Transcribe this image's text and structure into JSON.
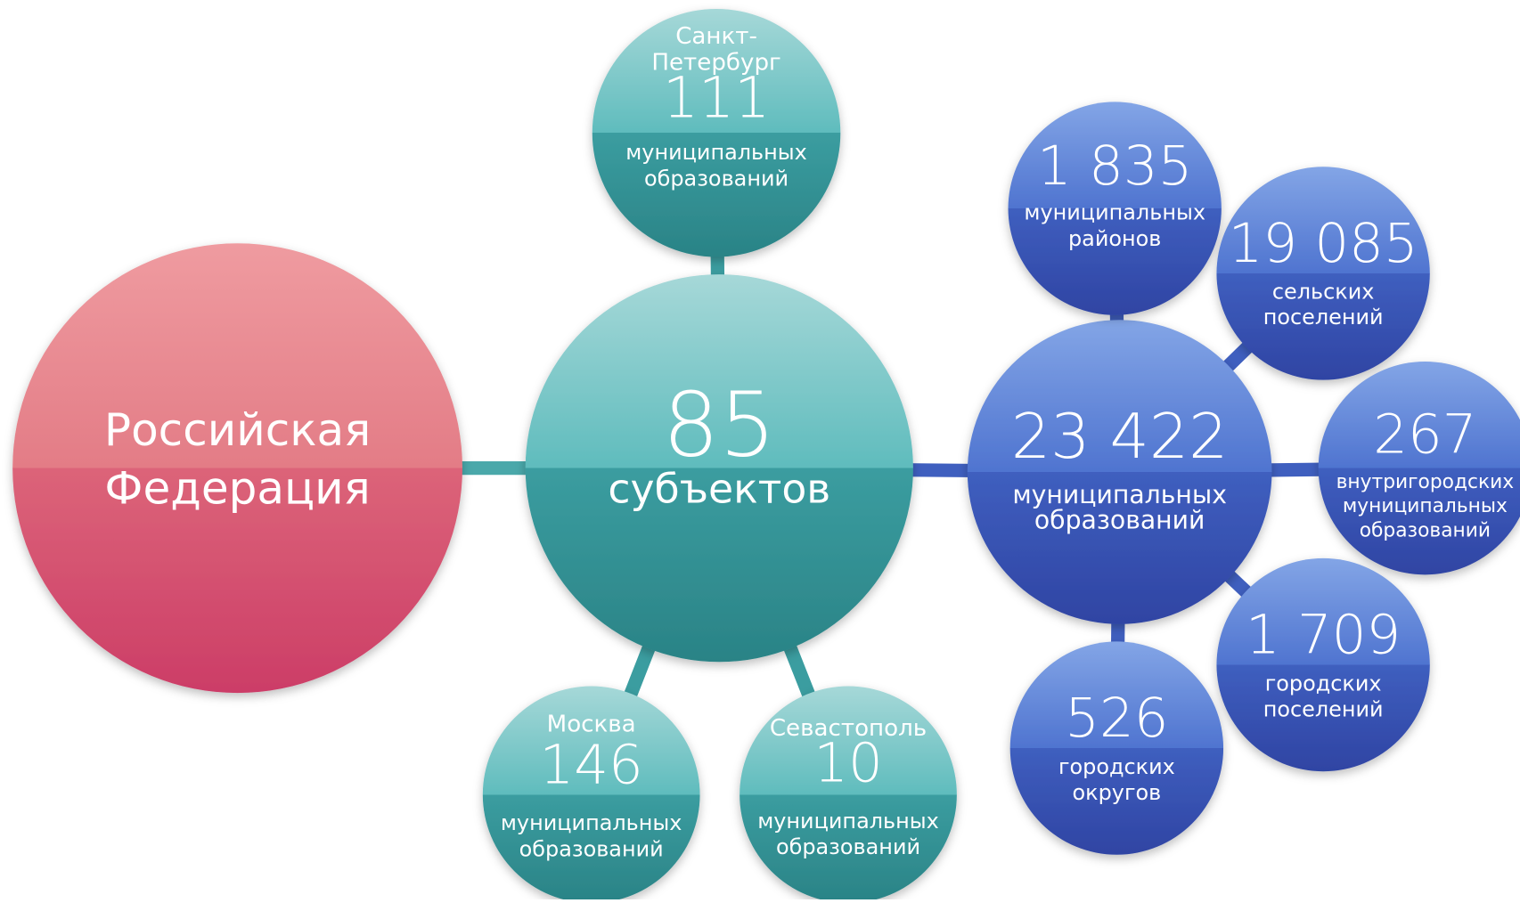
{
  "nodes": [
    {
      "id": "rf",
      "label": [
        "Российская",
        "Федерация"
      ]
    },
    {
      "id": "subjects",
      "number": "85",
      "label": [
        "субъектов"
      ]
    },
    {
      "id": "spb",
      "title": [
        "Санкт-",
        "Петербург"
      ],
      "number": "111",
      "label": [
        "муниципальных",
        "образований"
      ]
    },
    {
      "id": "moscow",
      "title": [
        "Москва"
      ],
      "number": "146",
      "label": [
        "муниципальных",
        "образований"
      ]
    },
    {
      "id": "sevastopol",
      "title": [
        "Севастополь"
      ],
      "number": "10",
      "label": [
        "муниципальных",
        "образований"
      ]
    },
    {
      "id": "mo",
      "number": "23 422",
      "label": [
        "муниципальных",
        "образований"
      ]
    },
    {
      "id": "districts",
      "number": "1 835",
      "label": [
        "муниципальных",
        "районов"
      ]
    },
    {
      "id": "rural",
      "number": "19 085",
      "label": [
        "сельских",
        "поселений"
      ]
    },
    {
      "id": "intracity",
      "number": "267",
      "label": [
        "внутригородских",
        "муниципальных",
        "образований"
      ]
    },
    {
      "id": "urban",
      "number": "1 709",
      "label": [
        "городских",
        "поселений"
      ]
    },
    {
      "id": "okrug",
      "number": "526",
      "label": [
        "городских",
        "округов"
      ]
    }
  ]
}
